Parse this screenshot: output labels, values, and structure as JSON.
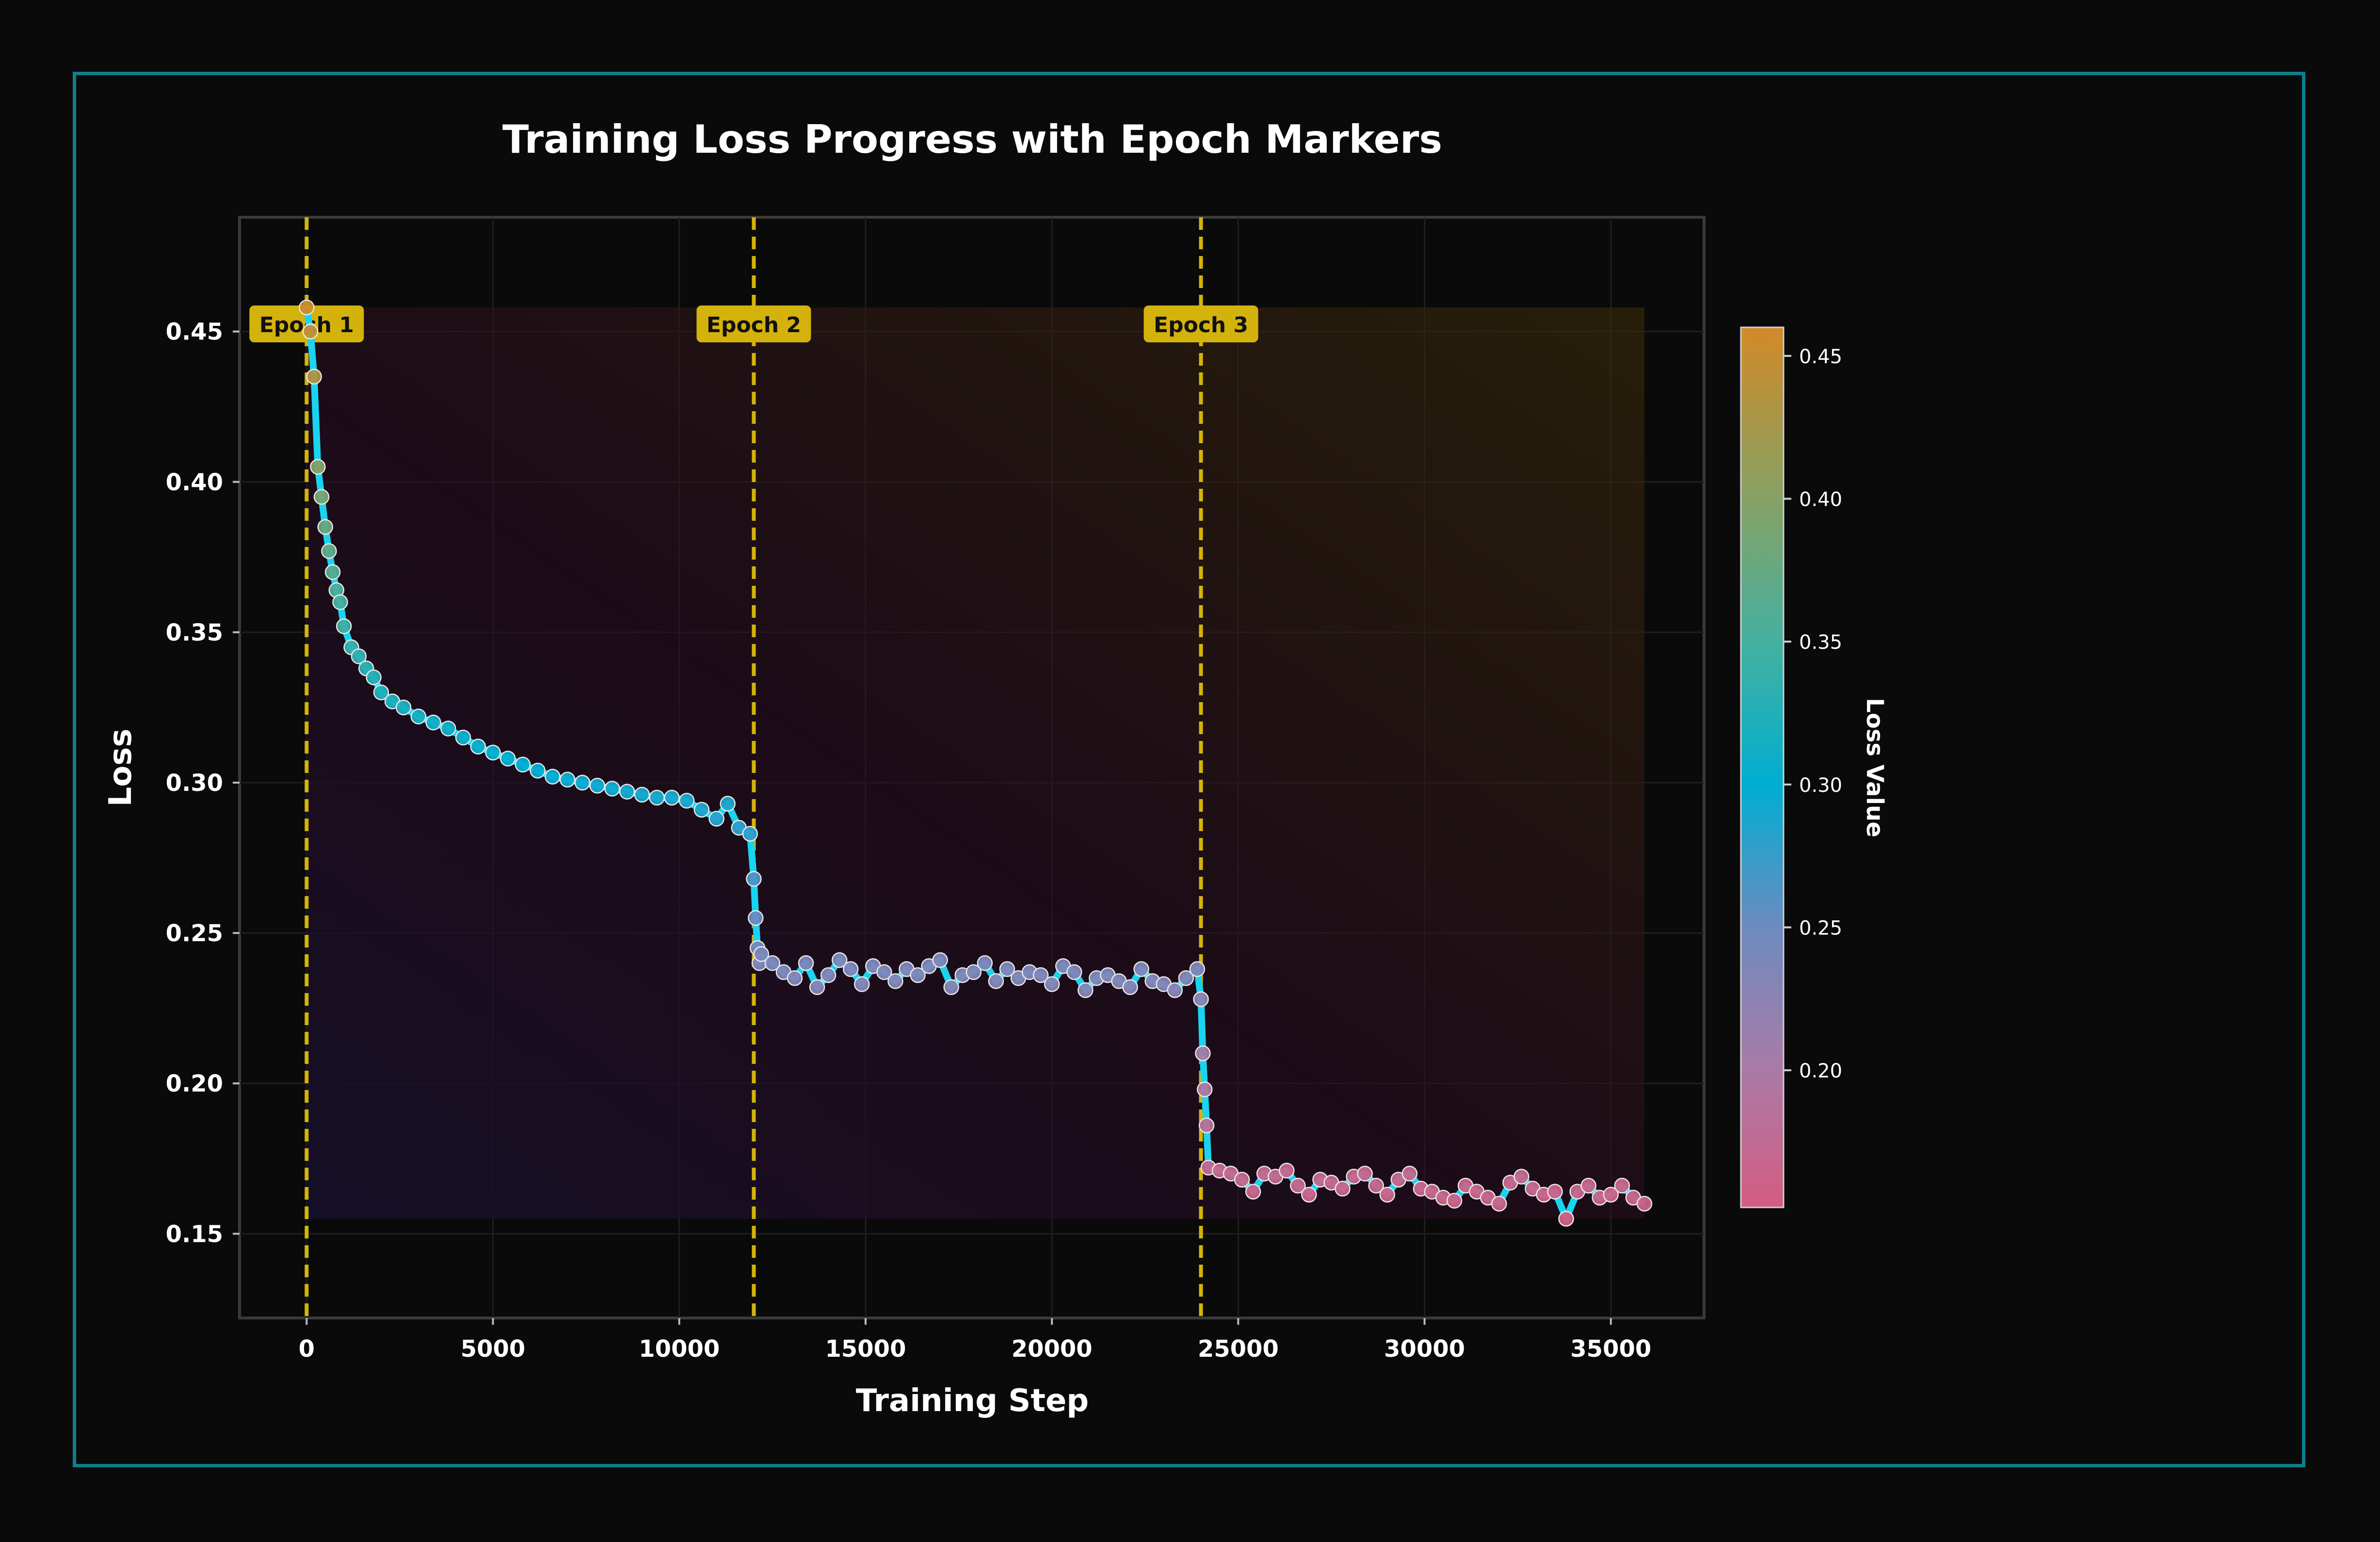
{
  "chart_data": {
    "type": "line",
    "title": "Training Loss Progress with Epoch Markers",
    "xlabel": "Training Step",
    "ylabel": "Loss",
    "xlim": [
      -1800,
      37500
    ],
    "ylim": [
      0.122,
      0.488
    ],
    "xticks": [
      0,
      5000,
      10000,
      15000,
      20000,
      25000,
      30000,
      35000
    ],
    "yticks": [
      0.15,
      0.2,
      0.25,
      0.3,
      0.35,
      0.4,
      0.45
    ],
    "xtick_labels": [
      "0",
      "5000",
      "10000",
      "15000",
      "20000",
      "25000",
      "30000",
      "35000"
    ],
    "ytick_labels": [
      "0.15",
      "0.20",
      "0.25",
      "0.30",
      "0.35",
      "0.40",
      "0.45"
    ],
    "grid": true,
    "series": [
      {
        "x": [
          0,
          100,
          200,
          300,
          400,
          500,
          600,
          700,
          800,
          900,
          1000,
          1200,
          1400,
          1600,
          1800,
          2000,
          2300,
          2600,
          3000,
          3400,
          3800,
          4200,
          4600,
          5000,
          5400,
          5800,
          6200,
          6600,
          7000,
          7400,
          7800,
          8200,
          8600,
          9000,
          9400,
          9800,
          10200,
          10600,
          11000,
          11300,
          11600,
          11900,
          12000,
          12050,
          12100,
          12150,
          12200,
          12500,
          12800,
          13100,
          13400,
          13700,
          14000,
          14300,
          14600,
          14900,
          15200,
          15500,
          15800,
          16100,
          16400,
          16700,
          17000,
          17300,
          17600,
          17900,
          18200,
          18500,
          18800,
          19100,
          19400,
          19700,
          20000,
          20300,
          20600,
          20900,
          21200,
          21500,
          21800,
          22100,
          22400,
          22700,
          23000,
          23300,
          23600,
          23900,
          24000,
          24050,
          24100,
          24150,
          24200,
          24500,
          24800,
          25100,
          25400,
          25700,
          26000,
          26300,
          26600,
          26900,
          27200,
          27500,
          27800,
          28100,
          28400,
          28700,
          29000,
          29300,
          29600,
          29900,
          30200,
          30500,
          30800,
          31100,
          31400,
          31700,
          32000,
          32300,
          32600,
          32900,
          33200,
          33500,
          33800,
          34100,
          34400,
          34700,
          35000,
          35300,
          35600,
          35900
        ],
        "values": [
          0.458,
          0.45,
          0.435,
          0.405,
          0.395,
          0.385,
          0.377,
          0.37,
          0.364,
          0.36,
          0.352,
          0.345,
          0.342,
          0.338,
          0.335,
          0.33,
          0.327,
          0.325,
          0.322,
          0.32,
          0.318,
          0.315,
          0.312,
          0.31,
          0.308,
          0.306,
          0.304,
          0.302,
          0.301,
          0.3,
          0.299,
          0.298,
          0.297,
          0.296,
          0.295,
          0.295,
          0.294,
          0.291,
          0.288,
          0.293,
          0.285,
          0.283,
          0.268,
          0.255,
          0.245,
          0.24,
          0.243,
          0.24,
          0.237,
          0.235,
          0.24,
          0.232,
          0.236,
          0.241,
          0.238,
          0.233,
          0.239,
          0.237,
          0.234,
          0.238,
          0.236,
          0.239,
          0.241,
          0.232,
          0.236,
          0.237,
          0.24,
          0.234,
          0.238,
          0.235,
          0.237,
          0.236,
          0.233,
          0.239,
          0.237,
          0.231,
          0.235,
          0.236,
          0.234,
          0.232,
          0.238,
          0.234,
          0.233,
          0.231,
          0.235,
          0.238,
          0.228,
          0.21,
          0.198,
          0.186,
          0.172,
          0.171,
          0.17,
          0.168,
          0.164,
          0.17,
          0.169,
          0.171,
          0.166,
          0.163,
          0.168,
          0.167,
          0.165,
          0.169,
          0.17,
          0.166,
          0.163,
          0.168,
          0.17,
          0.165,
          0.164,
          0.162,
          0.161,
          0.166,
          0.164,
          0.162,
          0.16,
          0.167,
          0.169,
          0.165,
          0.163,
          0.164,
          0.155,
          0.164,
          0.166,
          0.162,
          0.163,
          0.166,
          0.162,
          0.16
        ]
      }
    ],
    "epoch_markers": [
      {
        "step": 0,
        "label": "Epoch 1"
      },
      {
        "step": 12000,
        "label": "Epoch 2"
      },
      {
        "step": 24000,
        "label": "Epoch 3"
      }
    ],
    "colorbar": {
      "label": "Loss Value",
      "range": [
        0.152,
        0.46
      ],
      "ticks": [
        0.2,
        0.25,
        0.3,
        0.35,
        0.4,
        0.45
      ],
      "tick_labels": [
        "0.20",
        "0.25",
        "0.30",
        "0.35",
        "0.40",
        "0.45"
      ],
      "colors": [
        "#d55c80",
        "#a97ba6",
        "#6c8bc0",
        "#00aed2",
        "#44b0a0",
        "#8ca060",
        "#d28a28"
      ]
    },
    "colors": {
      "line": "#19d4f0",
      "epoch_line": "#d4b408",
      "epoch_label_bg": "#d4b20c",
      "frame": "#0e7f8c",
      "background": "#0a0a0a"
    }
  }
}
